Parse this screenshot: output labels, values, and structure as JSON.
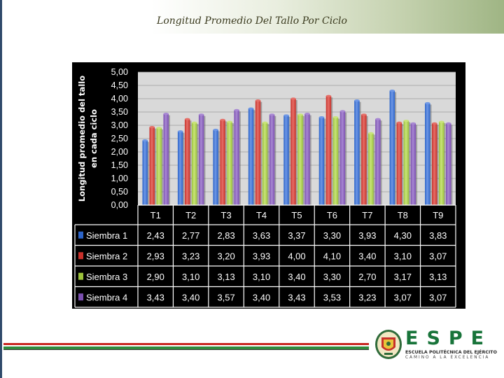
{
  "slide": {
    "title": "Longitud Promedio Del Tallo Por Ciclo"
  },
  "logo": {
    "name": "ESPE",
    "line1": "ESCUELA POLITÉCNICA DEL EJÉRCITO",
    "line2": "CAMINO A LA EXCELENCIA"
  },
  "colors": {
    "siembra1": "#2b63c8",
    "siembra2": "#c8302a",
    "siembra3": "#9bc23a",
    "siembra4": "#7b4fb0",
    "plot_bg": "#d9d9d9",
    "frame": "#000000"
  },
  "chart_data": {
    "type": "bar",
    "title": "",
    "ylabel_lines": [
      "Longitud promedio del tallo",
      "en cada ciclo"
    ],
    "xlabel": "",
    "ylim": [
      0,
      5
    ],
    "ytick_labels": [
      "0,00",
      "0,50",
      "1,00",
      "1,50",
      "2,00",
      "2,50",
      "3,00",
      "3,50",
      "4,00",
      "4,50",
      "5,00"
    ],
    "ytick_values": [
      0,
      0.5,
      1,
      1.5,
      2,
      2.5,
      3,
      3.5,
      4,
      4.5,
      5
    ],
    "categories": [
      "T1",
      "T2",
      "T3",
      "T4",
      "T5",
      "T6",
      "T7",
      "T8",
      "T9"
    ],
    "grid": true,
    "legend": "data-table",
    "series": [
      {
        "name": "Siembra 1",
        "values": [
          2.43,
          2.77,
          2.83,
          3.63,
          3.37,
          3.3,
          3.93,
          4.3,
          3.83
        ],
        "labels": [
          "2,43",
          "2,77",
          "2,83",
          "3,63",
          "3,37",
          "3,30",
          "3,93",
          "4,30",
          "3,83"
        ]
      },
      {
        "name": "Siembra 2",
        "values": [
          2.93,
          3.23,
          3.2,
          3.93,
          4.0,
          4.1,
          3.4,
          3.1,
          3.07
        ],
        "labels": [
          "2,93",
          "3,23",
          "3,20",
          "3,93",
          "4,00",
          "4,10",
          "3,40",
          "3,10",
          "3,07"
        ]
      },
      {
        "name": "Siembra 3",
        "values": [
          2.9,
          3.1,
          3.13,
          3.1,
          3.4,
          3.3,
          2.7,
          3.17,
          3.13
        ],
        "labels": [
          "2,90",
          "3,10",
          "3,13",
          "3,10",
          "3,40",
          "3,30",
          "2,70",
          "3,17",
          "3,13"
        ]
      },
      {
        "name": "Siembra 4",
        "values": [
          3.43,
          3.4,
          3.57,
          3.4,
          3.43,
          3.53,
          3.23,
          3.07,
          3.07
        ],
        "labels": [
          "3,43",
          "3,40",
          "3,57",
          "3,40",
          "3,43",
          "3,53",
          "3,23",
          "3,07",
          "3,07"
        ]
      }
    ]
  }
}
